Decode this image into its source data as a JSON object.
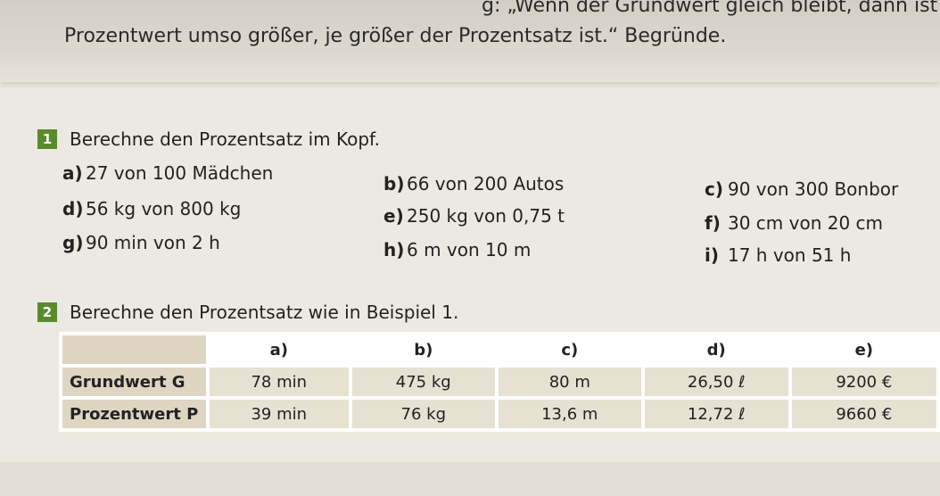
{
  "intro": {
    "line1": "g: „Wenn der Grundwert gleich bleibt, dann ist der",
    "line2": "Prozentwert umso größer, je größer der Prozentsatz ist.“ Begründe."
  },
  "task1": {
    "number": "1",
    "title": "Berechne den Prozentsatz im Kopf.",
    "items": [
      {
        "label": "a)",
        "text": "27 von 100 Mädchen"
      },
      {
        "label": "b)",
        "text": "66 von 200 Autos"
      },
      {
        "label": "c)",
        "text": "90 von 300 Bonbor"
      },
      {
        "label": "d)",
        "text": "56 kg von 800 kg"
      },
      {
        "label": "e)",
        "text": "250 kg von 0,75 t"
      },
      {
        "label": "f)",
        "text": "30 cm von 20 cm"
      },
      {
        "label": "g)",
        "text": "90 min von 2 h"
      },
      {
        "label": "h)",
        "text": "6 m von 10 m"
      },
      {
        "label": "i)",
        "text": "17 h von 51 h"
      }
    ]
  },
  "task2": {
    "number": "2",
    "title": "Berechne den Prozentsatz wie in Beispiel 1.",
    "table": {
      "headers": [
        "a)",
        "b)",
        "c)",
        "d)",
        "e)"
      ],
      "rows": [
        {
          "label": "Grundwert G",
          "cells": [
            "78 min",
            "475 kg",
            "80 m",
            "26,50 ℓ",
            "9200 €"
          ]
        },
        {
          "label": "Prozentwert P",
          "cells": [
            "39 min",
            "76 kg",
            "13,6 m",
            "12,72 ℓ",
            "9660 €"
          ]
        }
      ]
    }
  },
  "colors": {
    "badge": "#5b8a2d",
    "header_cell": "#ffffff",
    "label_cell": "#ded6c2",
    "data_cell": "#e7e1d2"
  }
}
